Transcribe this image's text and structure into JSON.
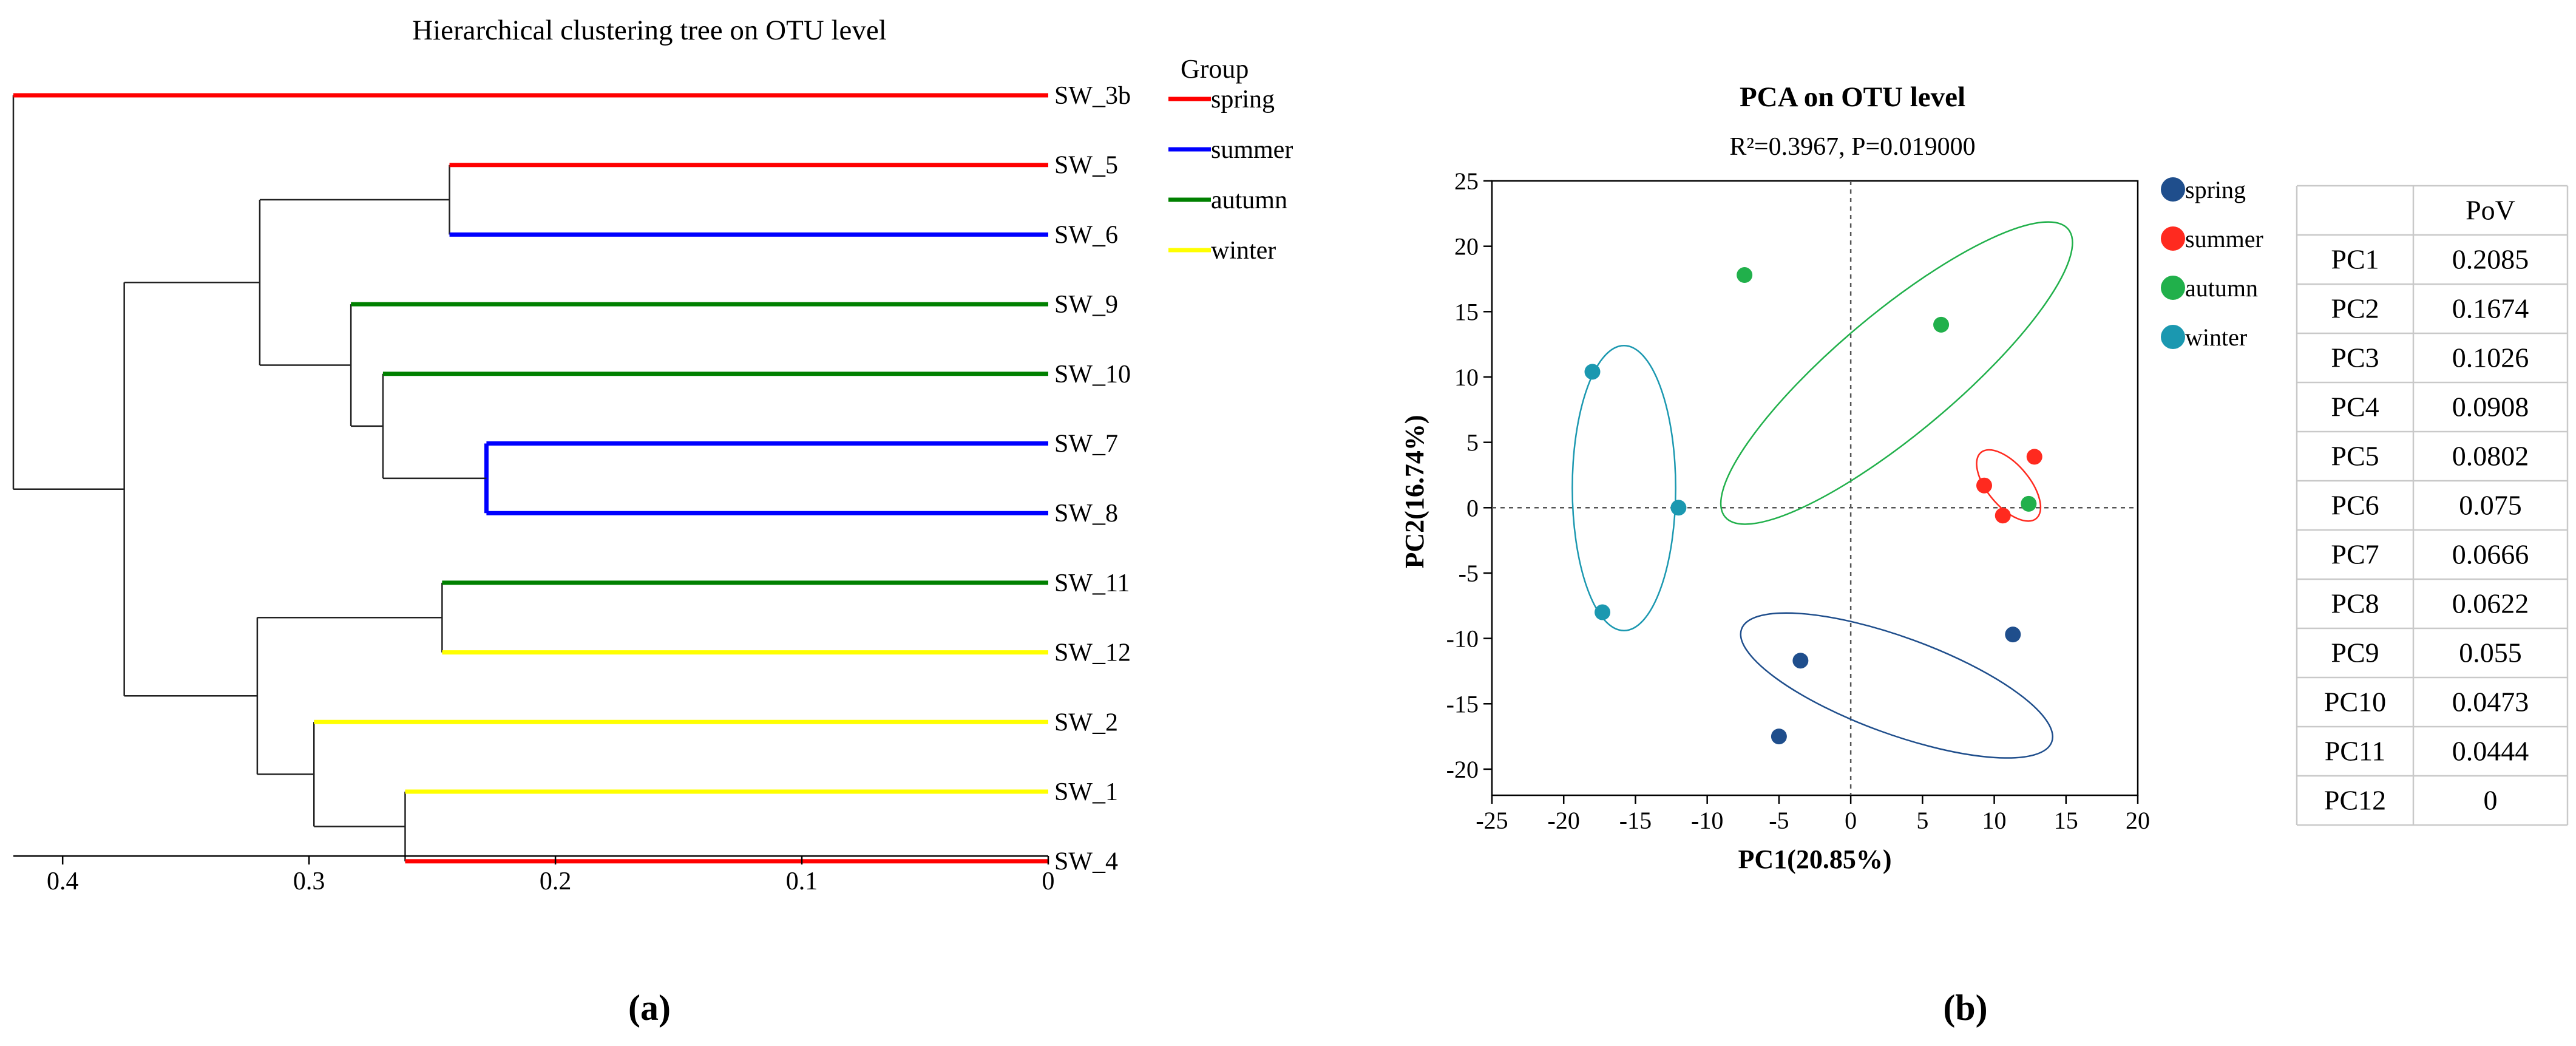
{
  "panel_labels": {
    "a": "(a)",
    "b": "(b)"
  },
  "colors": {
    "group_spring": "#ff0000",
    "group_summer": "#0000ff",
    "group_autumn": "#008000",
    "group_winter": "#ffff00",
    "pca_spring": "#1f4e8c",
    "pca_summer": "#ff2a1f",
    "pca_autumn": "#21b04b",
    "pca_winter": "#1b98b0"
  },
  "chart_data": [
    {
      "type": "dendrogram",
      "title": "Hierarchical clustering tree on OTU level",
      "xlim": [
        0.42,
        0
      ],
      "xticks": [
        {
          "value": 0.4,
          "label": "0.4"
        },
        {
          "value": 0.3,
          "label": "0.3"
        },
        {
          "value": 0.2,
          "label": "0.2"
        },
        {
          "value": 0.1,
          "label": "0.1"
        },
        {
          "value": 0,
          "label": "0"
        }
      ],
      "legend": {
        "title": "Group",
        "entries": [
          {
            "name": "spring",
            "color": "#ff0000"
          },
          {
            "name": "summer",
            "color": "#0000ff"
          },
          {
            "name": "autumn",
            "color": "#008000"
          },
          {
            "name": "winter",
            "color": "#ffff00"
          }
        ]
      },
      "leaves": [
        {
          "name": "SW_3b",
          "group": "spring"
        },
        {
          "name": "SW_5",
          "group": "spring"
        },
        {
          "name": "SW_6",
          "group": "summer"
        },
        {
          "name": "SW_9",
          "group": "autumn"
        },
        {
          "name": "SW_10",
          "group": "autumn"
        },
        {
          "name": "SW_7",
          "group": "summer"
        },
        {
          "name": "SW_8",
          "group": "summer"
        },
        {
          "name": "SW_11",
          "group": "autumn"
        },
        {
          "name": "SW_12",
          "group": "winter"
        },
        {
          "name": "SW_2",
          "group": "winter"
        },
        {
          "name": "SW_1",
          "group": "winter"
        },
        {
          "name": "SW_4",
          "group": "spring"
        }
      ],
      "merges": [
        {
          "id": "m1",
          "height": 0.228,
          "children": [
            "SW_7",
            "SW_8"
          ],
          "color": "#0000ff"
        },
        {
          "id": "m2",
          "height": 0.27,
          "children": [
            "SW_10",
            "m1"
          ]
        },
        {
          "id": "m3",
          "height": 0.283,
          "children": [
            "SW_9",
            "m2"
          ]
        },
        {
          "id": "m4",
          "height": 0.243,
          "children": [
            "SW_5",
            "SW_6"
          ]
        },
        {
          "id": "m5",
          "height": 0.32,
          "children": [
            "m4",
            "m3"
          ]
        },
        {
          "id": "m6",
          "height": 0.246,
          "children": [
            "SW_11",
            "SW_12"
          ]
        },
        {
          "id": "m7",
          "height": 0.261,
          "children": [
            "SW_1",
            "SW_4"
          ]
        },
        {
          "id": "m8",
          "height": 0.298,
          "children": [
            "SW_2",
            "m7"
          ]
        },
        {
          "id": "m9",
          "height": 0.321,
          "children": [
            "m6",
            "m8"
          ]
        },
        {
          "id": "m10",
          "height": 0.375,
          "children": [
            "m5",
            "m9"
          ]
        },
        {
          "id": "m11",
          "height": 0.42,
          "children": [
            "SW_3b",
            "m10"
          ]
        }
      ]
    },
    {
      "type": "scatter",
      "title": "PCA on OTU level",
      "subtitle": "R²=0.3967, P=0.019000",
      "xlabel": "PC1(20.85%)",
      "ylabel": "PC2(16.74%)",
      "xlim": [
        -25,
        20
      ],
      "ylim": [
        -22,
        25
      ],
      "xticks": [
        -25,
        -20,
        -15,
        -10,
        -5,
        0,
        5,
        10,
        15,
        20
      ],
      "yticks": [
        25,
        20,
        15,
        10,
        5,
        0,
        -5,
        -10,
        -15,
        -20
      ],
      "series": [
        {
          "name": "spring",
          "color": "#1f4e8c",
          "points": [
            [
              -3.5,
              -11.7
            ],
            [
              -5.0,
              -17.5
            ],
            [
              11.3,
              -9.7
            ]
          ],
          "ellipse": {
            "cx": 3.2,
            "cy": -13.6,
            "rx": 11.5,
            "ry": 3.7,
            "angle": 20
          }
        },
        {
          "name": "summer",
          "color": "#ff2a1f",
          "points": [
            [
              9.3,
              1.7
            ],
            [
              12.8,
              3.9
            ],
            [
              10.6,
              -0.6
            ]
          ],
          "ellipse": {
            "cx": 11.0,
            "cy": 1.7,
            "rx": 3.0,
            "ry": 1.6,
            "angle": 50
          }
        },
        {
          "name": "autumn",
          "color": "#21b04b",
          "points": [
            [
              -7.4,
              17.8
            ],
            [
              6.3,
              14.0
            ],
            [
              12.4,
              0.3
            ]
          ],
          "ellipse": {
            "cx": 3.2,
            "cy": 10.3,
            "rx": 15.6,
            "ry": 4.6,
            "angle": -40
          }
        },
        {
          "name": "winter",
          "color": "#1b98b0",
          "points": [
            [
              -18.0,
              10.4
            ],
            [
              -12.0,
              0.0
            ],
            [
              -17.3,
              -8.0
            ]
          ],
          "ellipse": {
            "cx": -15.8,
            "cy": 1.5,
            "rx": 3.6,
            "ry": 10.9,
            "angle": 0
          }
        }
      ]
    },
    {
      "type": "table",
      "header": [
        "",
        "PoV"
      ],
      "rows": [
        [
          "PC1",
          "0.2085"
        ],
        [
          "PC2",
          "0.1674"
        ],
        [
          "PC3",
          "0.1026"
        ],
        [
          "PC4",
          "0.0908"
        ],
        [
          "PC5",
          "0.0802"
        ],
        [
          "PC6",
          "0.075"
        ],
        [
          "PC7",
          "0.0666"
        ],
        [
          "PC8",
          "0.0622"
        ],
        [
          "PC9",
          "0.055"
        ],
        [
          "PC10",
          "0.0473"
        ],
        [
          "PC11",
          "0.0444"
        ],
        [
          "PC12",
          "0"
        ]
      ]
    }
  ]
}
